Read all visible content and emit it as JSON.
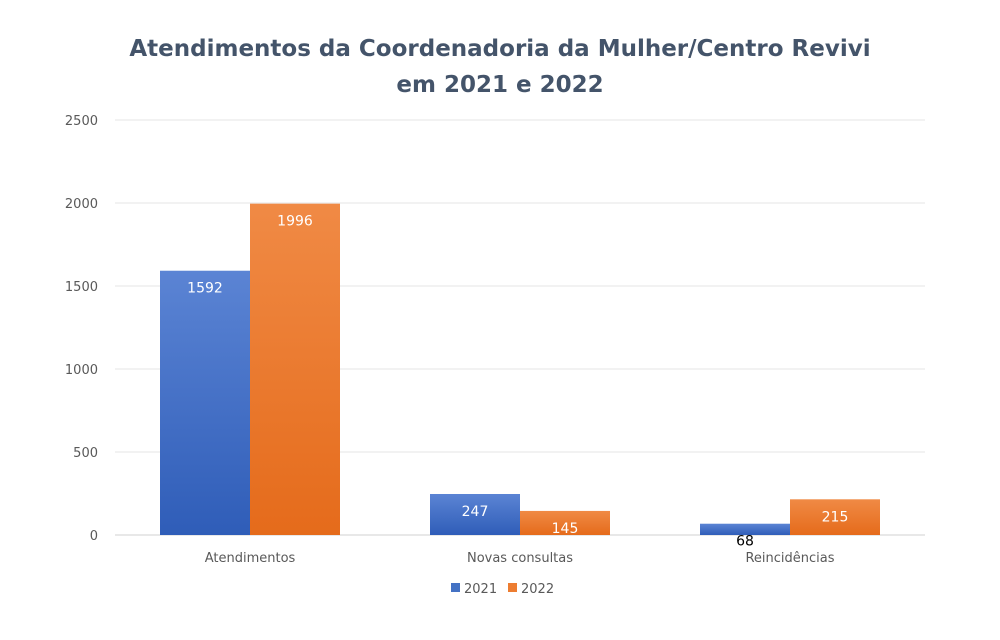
{
  "chart_data": {
    "type": "bar",
    "title": "Atendimentos da Coordenadoria da Mulher/Centro Revivi em 2021 e 2022",
    "title_lines": [
      "Atendimentos da Coordenadoria da Mulher/Centro Revivi",
      "em 2021 e 2022"
    ],
    "categories": [
      "Atendimentos",
      "Novas consultas",
      "Reincidências"
    ],
    "series": [
      {
        "name": "2021",
        "values": [
          1592,
          247,
          68
        ],
        "color": "#4472c4",
        "label_colors": [
          "#ffffff",
          "#ffffff",
          "#000000"
        ]
      },
      {
        "name": "2022",
        "values": [
          1996,
          145,
          215
        ],
        "color": "#ed7d31",
        "label_colors": [
          "#ffffff",
          "#ffffff",
          "#ffffff"
        ]
      }
    ],
    "ylim": [
      0,
      2500
    ],
    "yticks": [
      0,
      500,
      1000,
      1500,
      2000,
      2500
    ],
    "xlabel": "",
    "ylabel": "",
    "grid": true,
    "legend": "bottom"
  }
}
